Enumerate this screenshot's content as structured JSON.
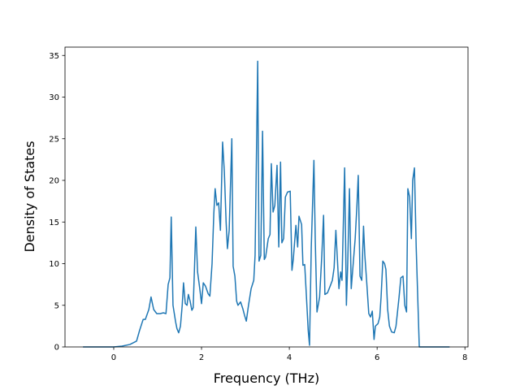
{
  "chart_data": {
    "type": "line",
    "xlabel": "Frequency (THz)",
    "ylabel": "Density of States",
    "color": "#1f77b4",
    "x": [
      -0.7,
      0.0,
      0.19,
      0.37,
      0.52,
      0.59,
      0.67,
      0.72,
      0.8,
      0.85,
      0.91,
      0.98,
      1.06,
      1.13,
      1.19,
      1.24,
      1.28,
      1.31,
      1.35,
      1.41,
      1.44,
      1.48,
      1.52,
      1.56,
      1.59,
      1.63,
      1.67,
      1.7,
      1.74,
      1.78,
      1.81,
      1.87,
      1.91,
      1.96,
      2.0,
      2.04,
      2.09,
      2.15,
      2.19,
      2.24,
      2.28,
      2.31,
      2.35,
      2.39,
      2.43,
      2.48,
      2.52,
      2.56,
      2.59,
      2.63,
      2.69,
      2.72,
      2.76,
      2.8,
      2.83,
      2.89,
      2.94,
      2.98,
      3.02,
      3.07,
      3.13,
      3.19,
      3.22,
      3.28,
      3.31,
      3.35,
      3.39,
      3.43,
      3.46,
      3.52,
      3.56,
      3.59,
      3.63,
      3.67,
      3.72,
      3.76,
      3.8,
      3.83,
      3.87,
      3.91,
      3.96,
      4.02,
      4.06,
      4.09,
      4.15,
      4.19,
      4.22,
      4.28,
      4.31,
      4.35,
      4.39,
      4.43,
      4.46,
      4.5,
      4.56,
      4.59,
      4.63,
      4.69,
      4.74,
      4.78,
      4.81,
      4.87,
      4.93,
      4.98,
      5.02,
      5.06,
      5.09,
      5.13,
      5.17,
      5.2,
      5.26,
      5.3,
      5.33,
      5.37,
      5.41,
      5.44,
      5.5,
      5.54,
      5.57,
      5.61,
      5.65,
      5.69,
      5.72,
      5.76,
      5.81,
      5.85,
      5.89,
      5.93,
      5.96,
      6.02,
      6.06,
      6.09,
      6.13,
      6.17,
      6.2,
      6.24,
      6.28,
      6.33,
      6.39,
      6.43,
      6.46,
      6.5,
      6.54,
      6.59,
      6.63,
      6.67,
      6.7,
      6.74,
      6.78,
      6.81,
      6.85,
      6.89,
      6.96,
      7.22,
      7.65
    ],
    "values": [
      0,
      0,
      0.1,
      0.3,
      0.7,
      2,
      3.3,
      3.3,
      4.5,
      6,
      4.5,
      4,
      4,
      4.1,
      4,
      7.5,
      8.3,
      15.6,
      5,
      3,
      2.2,
      1.7,
      2.5,
      5,
      7.7,
      5.2,
      5,
      6.3,
      5.5,
      4.4,
      4.7,
      14.4,
      9,
      7,
      5.2,
      7.7,
      7.3,
      6.4,
      6.1,
      10,
      16,
      19,
      17,
      17.3,
      14,
      24.6,
      21,
      15,
      11.8,
      14,
      25,
      9.7,
      8.5,
      5.5,
      5,
      5.4,
      4.6,
      3.8,
      3.1,
      5,
      7,
      8,
      11,
      34.3,
      10.3,
      11,
      25.9,
      10.5,
      10.8,
      13,
      13.5,
      22,
      16.2,
      17,
      21.8,
      12,
      22.2,
      12.5,
      13,
      18,
      18.6,
      18.7,
      9.2,
      10.5,
      14.6,
      12,
      15.7,
      14.7,
      9.8,
      9.9,
      6,
      2,
      0.2,
      12,
      22.4,
      13,
      4.2,
      6,
      11,
      15.8,
      6.3,
      6.5,
      7.3,
      8,
      9.5,
      14,
      11,
      7,
      9,
      8,
      21.5,
      5,
      10,
      19,
      7,
      9,
      13,
      17,
      20.6,
      8.5,
      8,
      14.5,
      11,
      8,
      4,
      3.6,
      4.3,
      0.9,
      2.5,
      2.8,
      3.6,
      6,
      10.3,
      10,
      9.3,
      4.5,
      2.5,
      1.8,
      1.7,
      2.5,
      4,
      6,
      8.3,
      8.5,
      5,
      4.2,
      19,
      18,
      13,
      20,
      21.5,
      12,
      0,
      0,
      0
    ],
    "xlim": [
      -1.11,
      8.07
    ],
    "ylim": [
      0,
      36
    ],
    "xticks": [
      0,
      2,
      4,
      6,
      8
    ],
    "yticks": [
      0,
      5,
      10,
      15,
      20,
      25,
      30,
      35
    ]
  }
}
